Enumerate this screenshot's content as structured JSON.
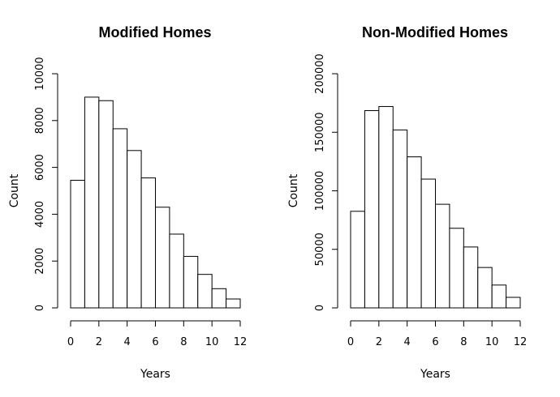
{
  "chart_data": [
    {
      "type": "bar",
      "title": "Modified Homes",
      "xlabel": "Years",
      "ylabel": "Count",
      "bin_edges": [
        0,
        1,
        2,
        3,
        4,
        5,
        6,
        7,
        8,
        9,
        10,
        11,
        12
      ],
      "values": [
        5450,
        9000,
        8850,
        7650,
        6720,
        5550,
        4300,
        3150,
        2200,
        1430,
        820,
        380
      ],
      "xlim": [
        0,
        12
      ],
      "ylim": [
        0,
        10000
      ],
      "xticks": [
        "0",
        "2",
        "4",
        "6",
        "8",
        "10",
        "12"
      ],
      "yticks": [
        "0",
        "2000",
        "4000",
        "6000",
        "8000",
        "10000"
      ],
      "grid": false,
      "legend": "none"
    },
    {
      "type": "bar",
      "title": "Non-Modified Homes",
      "xlabel": "Years",
      "ylabel": "Count",
      "bin_edges": [
        0,
        1,
        2,
        3,
        4,
        5,
        6,
        7,
        8,
        9,
        10,
        11,
        12
      ],
      "values": [
        82500,
        168500,
        172000,
        152000,
        129000,
        110000,
        88500,
        68000,
        52000,
        34500,
        19500,
        9000
      ],
      "xlim": [
        0,
        12
      ],
      "ylim": [
        0,
        200000
      ],
      "xticks": [
        "0",
        "2",
        "4",
        "6",
        "8",
        "10",
        "12"
      ],
      "yticks": [
        "0",
        "50000",
        "100000",
        "150000",
        "200000"
      ],
      "grid": false,
      "legend": "none"
    }
  ]
}
